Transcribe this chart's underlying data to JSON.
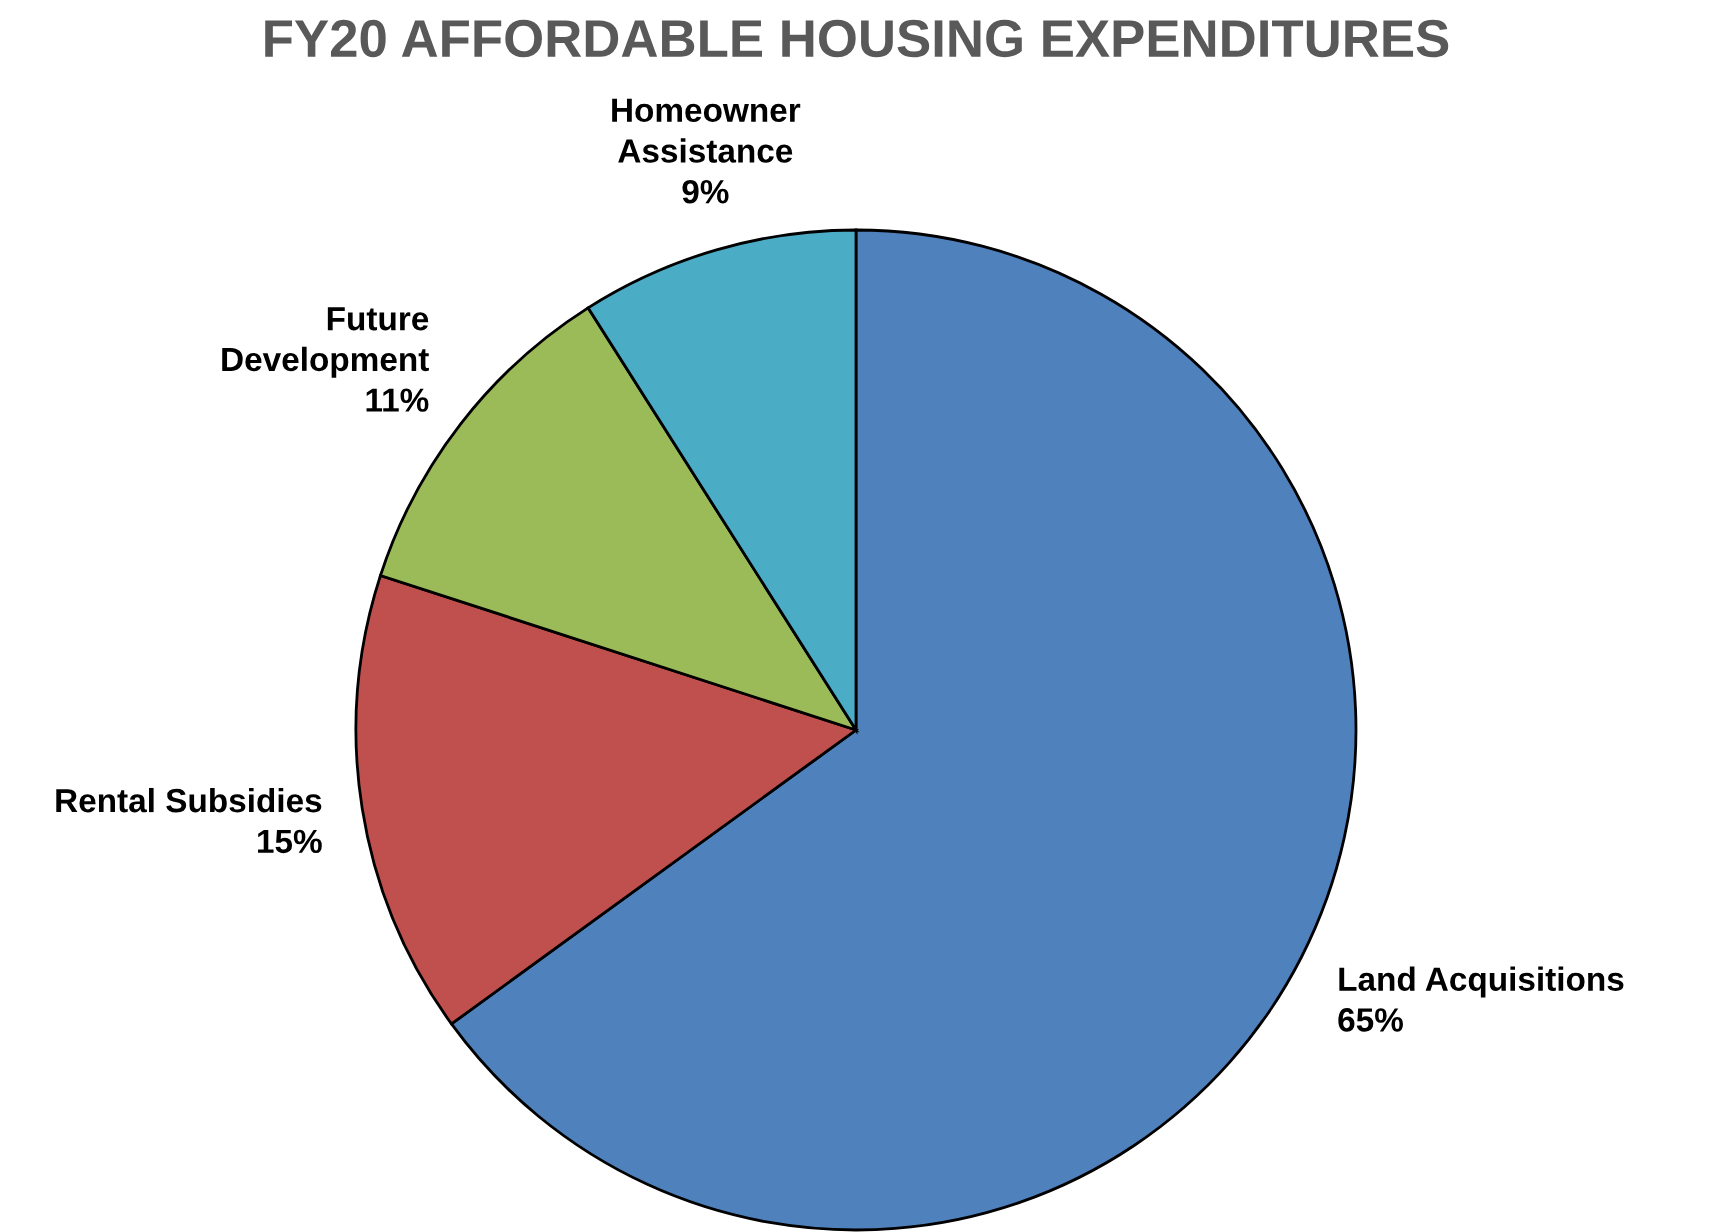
{
  "chart_data": {
    "type": "pie",
    "title": "FY20 AFFORDABLE HOUSING EXPENDITURES",
    "categories": [
      "Land Acquisitions",
      "Rental Subsidies",
      "Future\nDevelopment",
      "Homeowner\nAssistance"
    ],
    "values": [
      65,
      15,
      11,
      9
    ],
    "colors": [
      "#4f81bd",
      "#c0504d",
      "#9bbb59",
      "#4bacc6"
    ],
    "value_labels": [
      "65%",
      "15%",
      "11%",
      "9%"
    ],
    "legend": false
  }
}
